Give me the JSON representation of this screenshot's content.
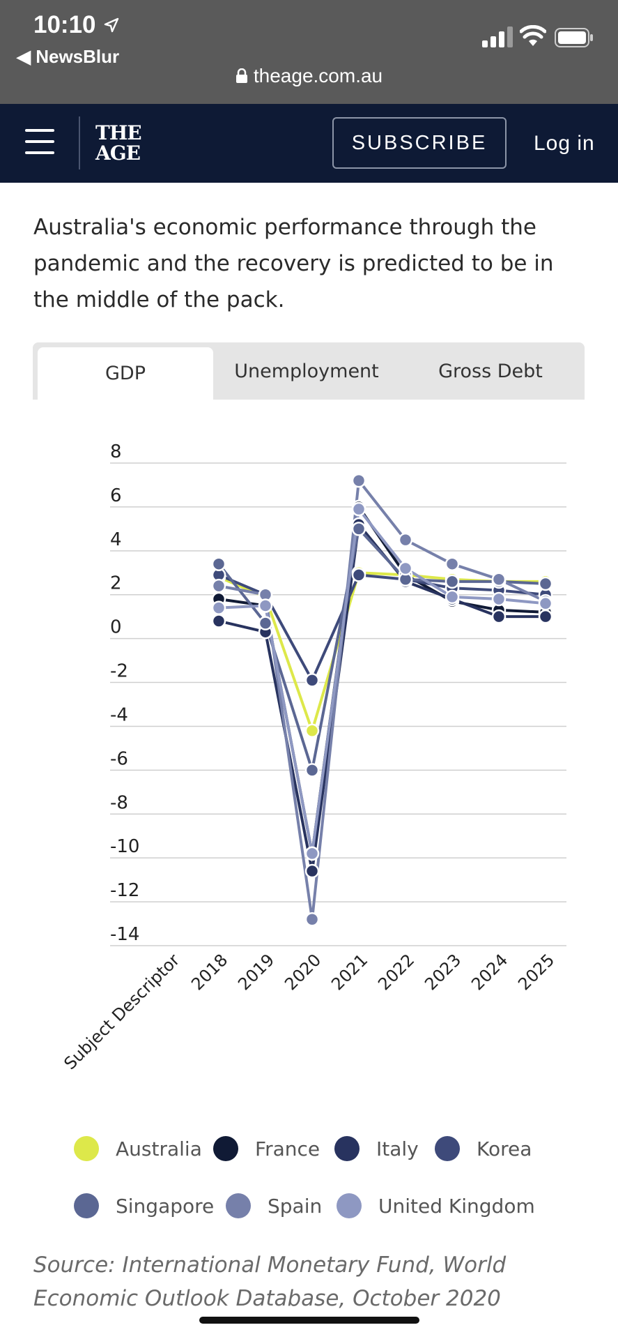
{
  "status_bar": {
    "time": "10:10",
    "back_app": "◀ NewsBlur",
    "url": "theage.com.au"
  },
  "header": {
    "logo_line1": "THE",
    "logo_line2": "AGE",
    "subscribe_label": "SUBSCRIBE",
    "login_label": "Log in"
  },
  "intro_text": "Australia's economic performance through the pandemic and the recovery is predicted to be in the middle of the pack.",
  "tabs": [
    {
      "label": "GDP",
      "active": true
    },
    {
      "label": "Unemployment",
      "active": false
    },
    {
      "label": "Gross Debt",
      "active": false
    }
  ],
  "chart_data": {
    "type": "line",
    "x": [
      "2018",
      "2019",
      "2020",
      "2021",
      "2022",
      "2023",
      "2024",
      "2025"
    ],
    "x_title_tick": "Subject Descriptor",
    "ylim": [
      -14,
      8
    ],
    "yticks": [
      "8",
      "6",
      "4",
      "2",
      "0",
      "-2",
      "-4",
      "-6",
      "-8",
      "-10",
      "-12",
      "-14"
    ],
    "grid": true,
    "legend_position": "bottom",
    "series": [
      {
        "name": "Australia",
        "color": "#dde84a",
        "values": [
          2.8,
          1.9,
          -4.2,
          3.0,
          2.9,
          2.7,
          2.6,
          2.6
        ]
      },
      {
        "name": "France",
        "color": "#101a35",
        "values": [
          1.8,
          1.5,
          -9.8,
          6.0,
          2.9,
          1.7,
          1.3,
          1.2
        ]
      },
      {
        "name": "Italy",
        "color": "#28335f",
        "values": [
          0.8,
          0.3,
          -10.6,
          5.2,
          2.6,
          1.8,
          1.0,
          1.0
        ]
      },
      {
        "name": "Korea",
        "color": "#3e4a7a",
        "values": [
          2.9,
          2.0,
          -1.9,
          2.9,
          2.7,
          2.3,
          2.2,
          2.0
        ]
      },
      {
        "name": "Singapore",
        "color": "#5b6793",
        "values": [
          3.4,
          0.7,
          -6.0,
          5.0,
          2.7,
          2.6,
          2.6,
          2.5
        ]
      },
      {
        "name": "Spain",
        "color": "#7680aa",
        "values": [
          2.4,
          2.0,
          -12.8,
          7.2,
          4.5,
          3.4,
          2.7,
          1.7
        ]
      },
      {
        "name": "United Kingdom",
        "color": "#8e98c2",
        "values": [
          1.4,
          1.5,
          -9.8,
          5.9,
          3.2,
          1.9,
          1.8,
          1.6
        ]
      }
    ]
  },
  "source_text": "Source: International Monetary Fund, World Economic Outlook Database, October 2020"
}
